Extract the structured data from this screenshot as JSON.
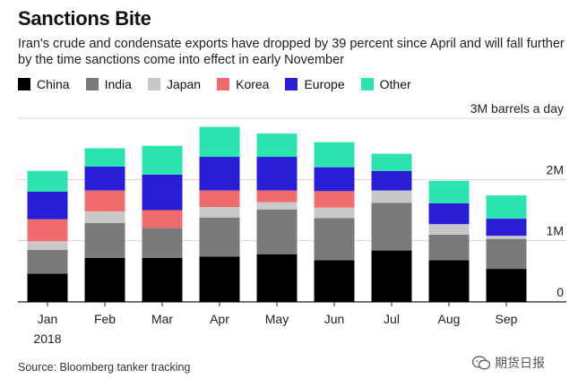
{
  "header": {
    "title": "Sanctions Bite",
    "subtitle": "Iran's crude and condensate exports have dropped by 39 percent since April and will fall further by the time sanctions come into effect in early November"
  },
  "source": "Source: Bloomberg tanker tracking",
  "watermark": "期货日报",
  "chart_data": {
    "type": "bar",
    "stacked": true,
    "categories": [
      "Jan",
      "Feb",
      "Mar",
      "Apr",
      "May",
      "Jun",
      "Jul",
      "Aug",
      "Sep"
    ],
    "year_label": "2018",
    "ylim": [
      0,
      3000000
    ],
    "yticks": [
      {
        "value": 0,
        "label": "0"
      },
      {
        "value": 1000000,
        "label": "1M"
      },
      {
        "value": 2000000,
        "label": "2M"
      },
      {
        "value": 3000000,
        "label": "3M barrels a day"
      }
    ],
    "axis_position": "right",
    "grid": true,
    "legend_position": "top-left",
    "series": [
      {
        "name": "China",
        "color": "#000000",
        "values": [
          460000,
          720000,
          720000,
          740000,
          780000,
          680000,
          840000,
          680000,
          540000
        ]
      },
      {
        "name": "India",
        "color": "#7a7a7a",
        "values": [
          390000,
          570000,
          490000,
          640000,
          730000,
          690000,
          780000,
          420000,
          490000
        ]
      },
      {
        "name": "Japan",
        "color": "#c8c8c8",
        "values": [
          140000,
          190000,
          0,
          170000,
          120000,
          170000,
          200000,
          170000,
          50000
        ]
      },
      {
        "name": "Korea",
        "color": "#f06b6b",
        "values": [
          360000,
          340000,
          290000,
          270000,
          190000,
          270000,
          0,
          0,
          0
        ]
      },
      {
        "name": "Europe",
        "color": "#2a1dd6",
        "values": [
          450000,
          390000,
          580000,
          550000,
          550000,
          390000,
          320000,
          340000,
          280000
        ]
      },
      {
        "name": "Other",
        "color": "#2de3b0",
        "values": [
          340000,
          300000,
          470000,
          490000,
          380000,
          410000,
          280000,
          370000,
          380000
        ]
      }
    ]
  }
}
